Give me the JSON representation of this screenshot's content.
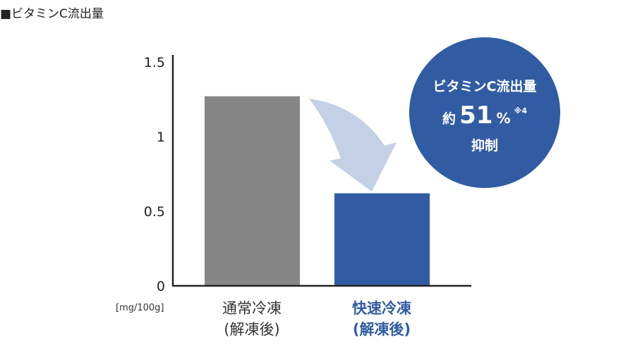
{
  "title": "■ビタミンC流出量",
  "colors": {
    "normal_bar": "#868686",
    "quick_bar": "#315ca3",
    "arrow": "#c3d0e6",
    "badge": "#315ca3",
    "axis": "#222222",
    "quick_label": "#315ca3",
    "normal_label": "#333333"
  },
  "chart_data": {
    "type": "bar",
    "title": "■ビタミンC流出量",
    "unit": "[mg/100g]",
    "ylim": [
      0,
      1.5
    ],
    "y_ticks": [
      "0",
      "0.5",
      "1",
      "1.5"
    ],
    "grid": false,
    "categories": [
      {
        "line1": "通常冷凍",
        "line2": "(解凍後)",
        "value": 1.27,
        "color_key": "normal_bar",
        "label_color_key": "normal_label",
        "bold": false
      },
      {
        "line1": "快速冷凍",
        "line2": "(解凍後)",
        "value": 0.62,
        "color_key": "quick_bar",
        "label_color_key": "quick_label",
        "bold": true
      }
    ],
    "annotation": {
      "line1": "ビタミンC流出量",
      "prefix": "約",
      "number": "51",
      "percent": "%",
      "note": "※4",
      "line3": "抑制"
    }
  }
}
